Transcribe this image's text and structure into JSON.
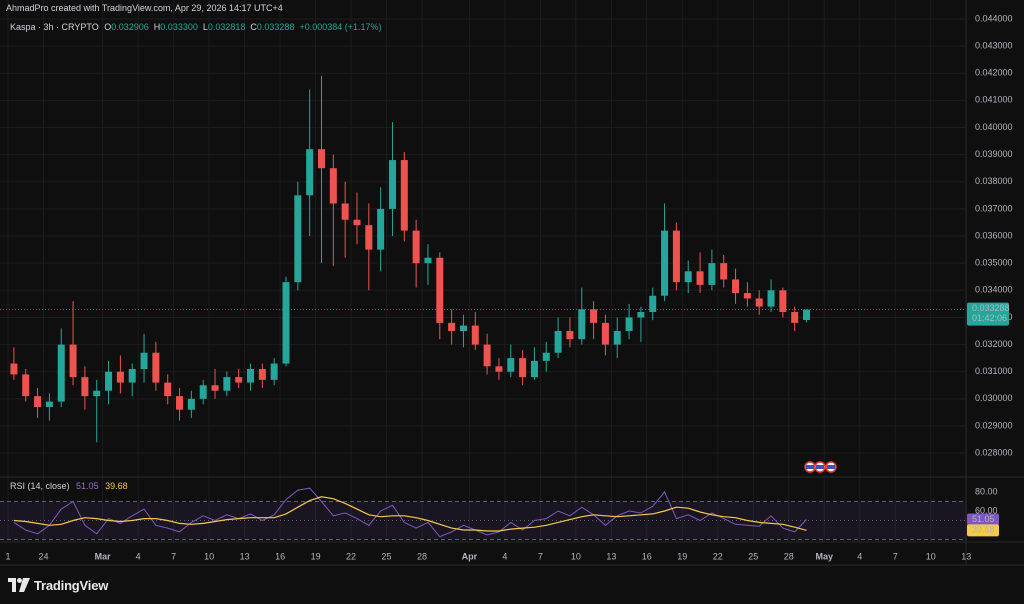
{
  "header": {
    "attribution": "AhmadPro created with TradingView.com, Apr 29, 2026 14:17 UTC+4"
  },
  "footer": {
    "logo_text": "TradingView"
  },
  "chart_data": [
    {
      "type": "candlestick",
      "title": "Kaspa · 3h · CRYPTO",
      "legend_items": [
        {
          "key": "O",
          "value": "0.032906"
        },
        {
          "key": "H",
          "value": "0.033300"
        },
        {
          "key": "L",
          "value": "0.032818"
        },
        {
          "key": "C",
          "value": "0.033288"
        }
      ],
      "change": "+0.000384 (+1.17%)",
      "up_color": "#26a69a",
      "down_color": "#ef5350",
      "categories": [
        "1",
        null,
        null,
        "24",
        null,
        null,
        null,
        null,
        "Mar",
        null,
        null,
        "4",
        null,
        null,
        "7",
        null,
        null,
        "10",
        null,
        null,
        "13",
        null,
        null,
        "16",
        null,
        null,
        "19",
        null,
        null,
        "22",
        null,
        null,
        "25",
        null,
        null,
        "28",
        null,
        null,
        null,
        "Apr",
        null,
        null,
        "4",
        null,
        null,
        "7",
        null,
        null,
        "10",
        null,
        null,
        "13",
        null,
        null,
        "16",
        null,
        null,
        "19",
        null,
        null,
        "22",
        null,
        null,
        "25",
        null,
        null,
        "28",
        null,
        null,
        "May",
        null,
        null,
        "4",
        null,
        null,
        "7",
        null,
        null,
        "10",
        null,
        null,
        "13"
      ],
      "open": [
        0.0313,
        0.0309,
        0.0301,
        0.0297,
        0.0299,
        0.032,
        0.0308,
        0.0301,
        0.0303,
        0.031,
        0.0306,
        0.0311,
        0.0317,
        0.0306,
        0.0301,
        0.0296,
        0.03,
        0.0305,
        0.0303,
        0.0308,
        0.0306,
        0.0311,
        0.0307,
        0.0313,
        0.0343,
        0.0375,
        0.0392,
        0.0385,
        0.0372,
        0.0366,
        0.0364,
        0.0355,
        0.037,
        0.0388,
        0.0362,
        0.035,
        0.0352,
        0.0328,
        0.0325,
        0.0327,
        0.032,
        0.0312,
        0.031,
        0.0315,
        0.0308,
        0.0314,
        0.0317,
        0.0325,
        0.0322,
        0.0333,
        0.0328,
        0.032,
        0.0325,
        0.033,
        0.0332,
        0.0338,
        0.0362,
        0.0343,
        0.0347,
        0.0342,
        0.035,
        0.0344,
        0.0339,
        0.0337,
        0.0334,
        0.034,
        0.0332,
        0.032906,
        null,
        null,
        null,
        null,
        null,
        null,
        null,
        null,
        null,
        null,
        null,
        null,
        null,
        null
      ],
      "high": [
        0.0319,
        0.0311,
        0.0304,
        0.0302,
        0.0326,
        0.0336,
        0.0312,
        0.0307,
        0.0314,
        0.0316,
        0.0313,
        0.0324,
        0.0321,
        0.0309,
        0.0304,
        0.0303,
        0.0307,
        0.0311,
        0.031,
        0.0311,
        0.0313,
        0.0313,
        0.0315,
        0.0345,
        0.038,
        0.0414,
        0.0419,
        0.039,
        0.038,
        0.0376,
        0.0372,
        0.0378,
        0.0402,
        0.0391,
        0.0366,
        0.0357,
        0.0354,
        0.0333,
        0.0331,
        0.0332,
        0.0324,
        0.0315,
        0.032,
        0.0318,
        0.0319,
        0.0321,
        0.033,
        0.033,
        0.0341,
        0.0336,
        0.0331,
        0.033,
        0.0335,
        0.0334,
        0.0341,
        0.0372,
        0.0365,
        0.0351,
        0.0354,
        0.0355,
        0.0353,
        0.0348,
        0.0343,
        0.034,
        0.0344,
        0.0341,
        0.0334,
        0.0333,
        null,
        null,
        null,
        null,
        null,
        null,
        null,
        null,
        null,
        null,
        null,
        null,
        null,
        null
      ],
      "low": [
        0.0307,
        0.0299,
        0.0293,
        0.0292,
        0.0297,
        0.0305,
        0.0296,
        0.0284,
        0.0298,
        0.0302,
        0.0301,
        0.0306,
        0.0303,
        0.0298,
        0.0292,
        0.0293,
        0.0298,
        0.03,
        0.0301,
        0.0304,
        0.0303,
        0.0304,
        0.0305,
        0.0312,
        0.034,
        0.036,
        0.035,
        0.0349,
        0.0352,
        0.0357,
        0.034,
        0.0347,
        0.036,
        0.0358,
        0.0341,
        0.0342,
        0.0322,
        0.032,
        0.0319,
        0.0318,
        0.0309,
        0.0307,
        0.0308,
        0.0305,
        0.0307,
        0.031,
        0.0315,
        0.0319,
        0.032,
        0.0322,
        0.0316,
        0.0315,
        0.0322,
        0.0321,
        0.0329,
        0.0336,
        0.034,
        0.0339,
        0.0339,
        0.034,
        0.0341,
        0.0335,
        0.0334,
        0.0331,
        0.0332,
        0.033,
        0.0325,
        0.032818,
        null,
        null,
        null,
        null,
        null,
        null,
        null,
        null,
        null,
        null,
        null,
        null,
        null,
        null
      ],
      "close": [
        0.0309,
        0.0301,
        0.0297,
        0.0299,
        0.032,
        0.0308,
        0.0301,
        0.0303,
        0.031,
        0.0306,
        0.0311,
        0.0317,
        0.0306,
        0.0301,
        0.0296,
        0.03,
        0.0305,
        0.0303,
        0.0308,
        0.0306,
        0.0311,
        0.0307,
        0.0313,
        0.0343,
        0.0375,
        0.0392,
        0.0385,
        0.0372,
        0.0366,
        0.0364,
        0.0355,
        0.037,
        0.0388,
        0.0362,
        0.035,
        0.0352,
        0.0328,
        0.0325,
        0.0327,
        0.032,
        0.0312,
        0.031,
        0.0315,
        0.0308,
        0.0314,
        0.0317,
        0.0325,
        0.0322,
        0.0333,
        0.0328,
        0.032,
        0.0325,
        0.033,
        0.0332,
        0.0338,
        0.0362,
        0.0343,
        0.0347,
        0.0342,
        0.035,
        0.0344,
        0.0339,
        0.0337,
        0.0334,
        0.034,
        0.0332,
        0.0328,
        0.033288,
        null,
        null,
        null,
        null,
        null,
        null,
        null,
        null,
        null,
        null,
        null,
        null,
        null,
        null
      ],
      "last_price": {
        "value": 0.033288,
        "label": "0.033288",
        "countdown": "01:42:06"
      },
      "ylim": [
        0.02712,
        0.04433
      ],
      "yticks": [
        {
          "value": 0.028,
          "label": "0.028000"
        },
        {
          "value": 0.029,
          "label": "0.029000"
        },
        {
          "value": 0.03,
          "label": "0.030000"
        },
        {
          "value": 0.031,
          "label": "0.031000"
        },
        {
          "value": 0.032,
          "label": "0.032000"
        },
        {
          "value": 0.033,
          "label": "0.033000"
        },
        {
          "value": 0.034,
          "label": "0.034000"
        },
        {
          "value": 0.035,
          "label": "0.035000"
        },
        {
          "value": 0.036,
          "label": "0.036000"
        },
        {
          "value": 0.037,
          "label": "0.037000"
        },
        {
          "value": 0.038,
          "label": "0.038000"
        },
        {
          "value": 0.039,
          "label": "0.039000"
        },
        {
          "value": 0.04,
          "label": "0.040000"
        },
        {
          "value": 0.041,
          "label": "0.041000"
        },
        {
          "value": 0.042,
          "label": "0.042000"
        },
        {
          "value": 0.043,
          "label": "0.043000"
        },
        {
          "value": 0.044,
          "label": "0.044000"
        }
      ],
      "grid": true
    },
    {
      "type": "line",
      "title": "RSI (14, close)",
      "series": [
        {
          "name": "RSI",
          "color": "#7e57c2",
          "values": [
            48,
            40,
            36,
            45,
            62,
            70,
            45,
            36,
            52,
            47,
            55,
            62,
            45,
            42,
            38,
            48,
            55,
            50,
            56,
            52,
            57,
            50,
            56,
            72,
            82,
            84,
            70,
            55,
            58,
            52,
            45,
            60,
            66,
            48,
            42,
            48,
            33,
            38,
            45,
            40,
            35,
            38,
            48,
            40,
            50,
            52,
            60,
            55,
            64,
            56,
            45,
            55,
            60,
            58,
            65,
            80,
            52,
            56,
            50,
            58,
            52,
            46,
            45,
            44,
            55,
            42,
            38,
            51.05
          ]
        },
        {
          "name": "RSI MA",
          "color": "#f7c948",
          "values": [
            50,
            49,
            47,
            45,
            46,
            50,
            53,
            52,
            50,
            49,
            50,
            52,
            52,
            50,
            47,
            46,
            47,
            49,
            51,
            52,
            53,
            53,
            53,
            57,
            64,
            71,
            75,
            73,
            68,
            62,
            56,
            54,
            55,
            55,
            53,
            50,
            46,
            42,
            40,
            40,
            39,
            39,
            41,
            42,
            43,
            45,
            48,
            51,
            54,
            56,
            55,
            54,
            55,
            56,
            57,
            60,
            64,
            63,
            59,
            56,
            54,
            53,
            50,
            48,
            47,
            46,
            43,
            39.68
          ]
        }
      ],
      "bands": [
        70,
        30
      ],
      "midline": 50,
      "ylim": [
        27.4,
        95.8
      ],
      "yticks": [
        {
          "value": 80,
          "label": "80.00"
        },
        {
          "value": 60,
          "label": "60.00"
        }
      ]
    }
  ]
}
